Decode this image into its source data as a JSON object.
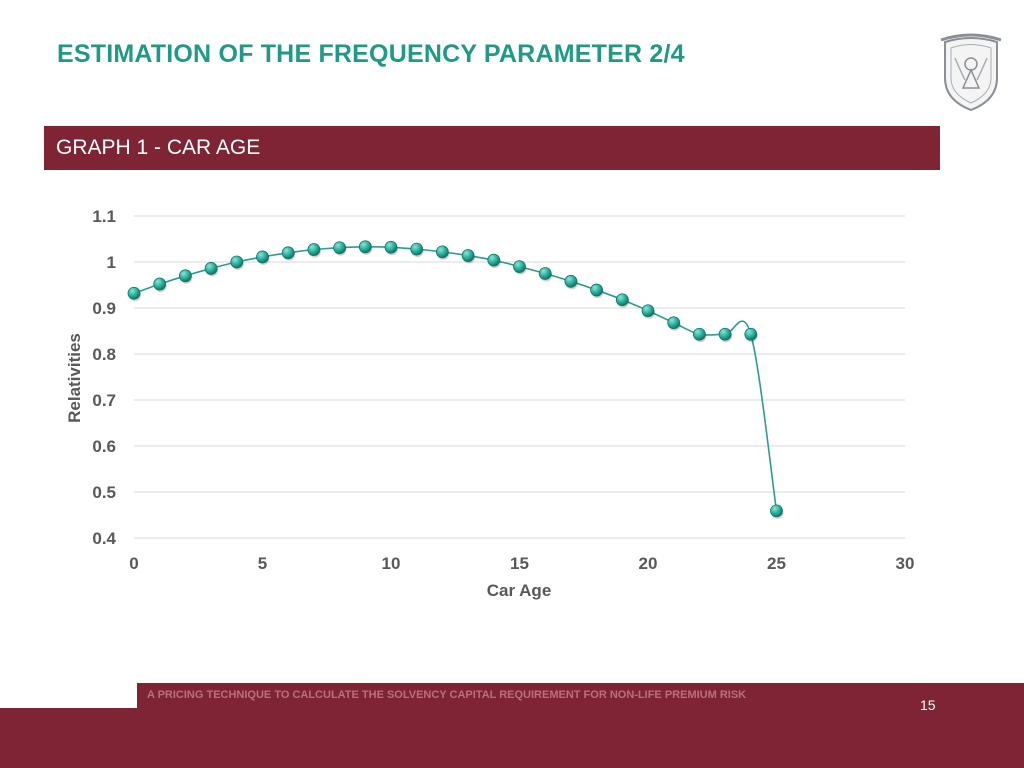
{
  "slide": {
    "title": "ESTIMATION OF THE FREQUENCY PARAMETER 2/4",
    "banner": "GRAPH 1 - CAR AGE",
    "footer": "A PRICING TECHNIQUE TO CALCULATE THE SOLVENCY CAPITAL REQUIREMENT FOR NON-LIFE PREMIUM RISK",
    "page_number": "15",
    "logo": "university-seal-icon",
    "colors": {
      "title": "#1e9a86",
      "banner": "#7f2434",
      "line": "#2a9d8f",
      "marker": "#2bb3a0",
      "grid": "#d9d9d9"
    }
  },
  "chart_data": {
    "type": "line",
    "title": "",
    "xlabel": "Car Age",
    "ylabel": "Relativities",
    "xlim": [
      0,
      30
    ],
    "ylim": [
      0.4,
      1.1
    ],
    "xticks": [
      0,
      5,
      10,
      15,
      20,
      25,
      30
    ],
    "yticks": [
      0.4,
      0.5,
      0.6,
      0.7,
      0.8,
      0.9,
      1,
      1.1
    ],
    "grid": true,
    "smooth": true,
    "markers": true,
    "x": [
      0,
      1,
      2,
      3,
      4,
      5,
      6,
      7,
      8,
      9,
      10,
      11,
      12,
      13,
      14,
      15,
      16,
      17,
      18,
      19,
      20,
      21,
      22,
      23,
      24,
      25
    ],
    "y": [
      0.932,
      0.952,
      0.97,
      0.986,
      1.0,
      1.011,
      1.02,
      1.027,
      1.031,
      1.033,
      1.032,
      1.028,
      1.022,
      1.014,
      1.004,
      0.99,
      0.975,
      0.958,
      0.939,
      0.918,
      0.894,
      0.868,
      0.843,
      0.843,
      0.843,
      0.459
    ]
  }
}
